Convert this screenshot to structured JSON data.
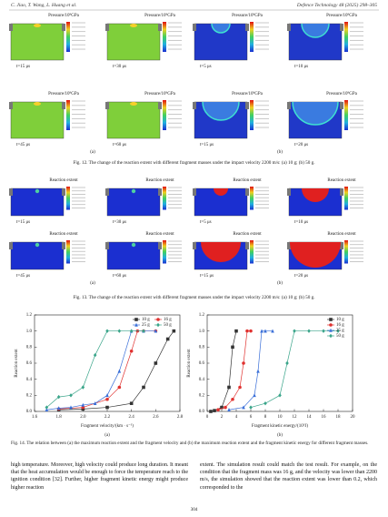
{
  "header": {
    "left": "C. Jiao, T. Wang, L. Huang et al.",
    "right": "Defence Technology 48 (2025) 298–305"
  },
  "fig12": {
    "panels": [
      {
        "title": "Pressure/10⁹GPa",
        "time": "t=15 μs"
      },
      {
        "title": "Pressure/10⁹GPa",
        "time": "t=30 μs"
      },
      {
        "title": "Pressure/10⁹GPa",
        "time": "t=5 μs"
      },
      {
        "title": "Pressure/10⁹GPa",
        "time": "t=10 μs"
      },
      {
        "title": "Pressure/10⁹GPa",
        "time": "t=45 μs"
      },
      {
        "title": "Pressure/10⁹GPa",
        "time": "t=60 μs"
      },
      {
        "title": "Pressure/10⁹GPa",
        "time": "t=15 μs"
      },
      {
        "title": "Pressure/10⁹GPa",
        "time": "t=20 μs"
      }
    ],
    "subfigures": [
      "(a)",
      "(b)"
    ],
    "caption": "Fig. 12. The change of the reaction extent with different fragment masses under the impact velocity 2200 m/s: (a) 10 g; (b) 50 g."
  },
  "fig13": {
    "panels": [
      {
        "title": "Reaction extent",
        "time": "t=15 μs"
      },
      {
        "title": "Reaction extent",
        "time": "t=30 μs"
      },
      {
        "title": "Reaction extent",
        "time": "t=5 μs"
      },
      {
        "title": "Reaction extent",
        "time": "t=10 μs"
      },
      {
        "title": "Reaction extent",
        "time": "t=45 μs"
      },
      {
        "title": "Reaction extent",
        "time": "t=60 μs"
      },
      {
        "title": "Reaction extent",
        "time": "t=15 μs"
      },
      {
        "title": "Reaction extent",
        "time": "t=20 μs"
      }
    ],
    "subfigures": [
      "(a)",
      "(b)"
    ],
    "caption": "Fig. 13. The change of the reaction extent with different fragment masses under the impact velocity 2200 m/s: (a) 10 g; (b) 50 g."
  },
  "chart_data": [
    {
      "type": "line",
      "sublabel": "(a)",
      "xlabel": "Fragment velocity/(km · s⁻¹)",
      "ylabel": "Reaction extent",
      "xlim": [
        1.6,
        2.8
      ],
      "xticks": [
        1.6,
        1.8,
        {
          "value": 2,
          "label": "2.0"
        },
        2.2,
        2.4,
        2.6,
        2.8
      ],
      "ylim": [
        0,
        1.2
      ],
      "yticks": [
        {
          "value": 0,
          "label": "0.0"
        },
        0.2,
        0.4,
        0.6,
        0.8,
        {
          "value": 1,
          "label": "1.0"
        },
        1.2
      ],
      "legend": "upper right",
      "legend_columns": 2,
      "series": [
        {
          "name": "10 g",
          "color": "#333333",
          "marker": "square",
          "x": [
            1.8,
            2.0,
            2.2,
            2.4,
            2.5,
            2.6,
            2.7,
            2.75
          ],
          "values": [
            0.02,
            0.03,
            0.05,
            0.1,
            0.3,
            0.6,
            0.9,
            1.0
          ]
        },
        {
          "name": "16 g",
          "color": "#e0312f",
          "marker": "circle",
          "x": [
            1.8,
            2.0,
            2.2,
            2.3,
            2.4,
            2.45,
            2.5,
            2.6
          ],
          "values": [
            0.03,
            0.05,
            0.15,
            0.3,
            0.75,
            1.0,
            1.0,
            1.0
          ]
        },
        {
          "name": "25 g",
          "color": "#3a6fd8",
          "marker": "triangle",
          "x": [
            1.7,
            1.8,
            1.9,
            2.0,
            2.1,
            2.2,
            2.3,
            2.4,
            2.5,
            2.6
          ],
          "values": [
            0.02,
            0.04,
            0.05,
            0.08,
            0.1,
            0.2,
            0.5,
            1.0,
            1.0,
            1.0
          ]
        },
        {
          "name": "50 g",
          "color": "#3aa58a",
          "marker": "diamond",
          "x": [
            1.7,
            1.8,
            1.9,
            2.0,
            2.1,
            2.2,
            2.3,
            2.4,
            2.5
          ],
          "values": [
            0.05,
            0.18,
            0.2,
            0.3,
            0.7,
            1.0,
            1.0,
            1.0,
            1.0
          ]
        }
      ]
    },
    {
      "type": "line",
      "sublabel": "(b)",
      "xlabel": "Fragment kinetic energy/(10⁵J)",
      "ylabel": "Reaction extent",
      "xlim": [
        0,
        20
      ],
      "xticks": [
        0,
        2,
        4,
        6,
        8,
        10,
        12,
        14,
        16,
        18,
        20
      ],
      "ylim": [
        0,
        1.2
      ],
      "yticks": [
        {
          "value": 0,
          "label": "0.0"
        },
        0.2,
        0.4,
        0.6,
        0.8,
        {
          "value": 1,
          "label": "1.0"
        },
        1.2
      ],
      "legend": "upper right",
      "legend_columns": 1,
      "series": [
        {
          "name": "10 g",
          "color": "#333333",
          "marker": "square",
          "x": [
            0.5,
            1,
            2,
            3,
            3.5,
            4
          ],
          "values": [
            0,
            0.01,
            0.05,
            0.3,
            0.8,
            1.0
          ]
        },
        {
          "name": "16 g",
          "color": "#e0312f",
          "marker": "circle",
          "x": [
            1.5,
            2.5,
            3.5,
            4.5,
            5,
            5.5,
            6
          ],
          "values": [
            0.02,
            0.05,
            0.15,
            0.3,
            0.6,
            1.0,
            1.0
          ]
        },
        {
          "name": "25 g",
          "color": "#3a6fd8",
          "marker": "triangle",
          "x": [
            3,
            5,
            6.5,
            7,
            7.5,
            8,
            9
          ],
          "values": [
            0.02,
            0.05,
            0.2,
            0.5,
            1.0,
            1.0,
            1.0
          ]
        },
        {
          "name": "50 g",
          "color": "#3aa58a",
          "marker": "diamond",
          "x": [
            6,
            8,
            10,
            11,
            12,
            14,
            16,
            18
          ],
          "values": [
            0.05,
            0.1,
            0.2,
            0.6,
            1.0,
            1.0,
            1.0,
            1.0
          ]
        }
      ]
    }
  ],
  "fig14": {
    "caption": "Fig. 14. The relation between (a) the maximum reaction extent and the fragment velocity and (b) the maximum reaction extent and the fragment kinetic energy for different fragment masses."
  },
  "body": {
    "left": "high temperature. Moreover, high velocity could produce long duration. It meant that the heat accumulation would be enough to force the temperature reach to the ignition condition [32]. Further, higher fragment kinetic energy might produce higher reaction",
    "right": "extent. The simulation result could match the test result. For example, on the condition that the fragment mass was 16 g, and the velocity was lower than 2200 m/s, the simulation showed that the reaction extent was lower than 0.2, which corresponded to the"
  },
  "page_number": "304"
}
